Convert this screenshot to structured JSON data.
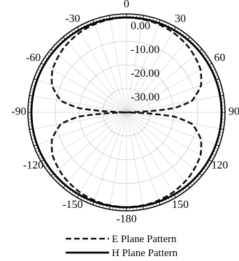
{
  "chart_data": {
    "type": "polar-line",
    "title": "",
    "angular_unit": "degrees",
    "angle_zero": "top",
    "angle_direction": "clockwise",
    "angle_tick_labels": [
      "0",
      "30",
      "60",
      "90",
      "120",
      "150",
      "-180",
      "-150",
      "-120",
      "-90",
      "-60",
      "-30"
    ],
    "radial_tick_labels": [
      "0.00",
      "-10.00",
      "-20.00",
      "-30.00"
    ],
    "radial_range_db": [
      -40,
      0
    ],
    "grid": true,
    "legend_placement": "bottom",
    "series": [
      {
        "name": "E Plane Pattern",
        "style": "dashed",
        "color": "#111111",
        "points": [
          {
            "angle": 0,
            "db": 0
          },
          {
            "angle": 15,
            "db": -0.3
          },
          {
            "angle": 30,
            "db": -1
          },
          {
            "angle": 45,
            "db": -2.2
          },
          {
            "angle": 60,
            "db": -4
          },
          {
            "angle": 70,
            "db": -6.6
          },
          {
            "angle": 80,
            "db": -12
          },
          {
            "angle": 85,
            "db": -20
          },
          {
            "angle": 89,
            "db": -40
          },
          {
            "angle": 91,
            "db": -40
          },
          {
            "angle": 95,
            "db": -20
          },
          {
            "angle": 100,
            "db": -12
          },
          {
            "angle": 110,
            "db": -6.6
          },
          {
            "angle": 120,
            "db": -4
          },
          {
            "angle": 135,
            "db": -2.2
          },
          {
            "angle": 150,
            "db": -1
          },
          {
            "angle": 165,
            "db": -0.3
          },
          {
            "angle": 180,
            "db": 0
          },
          {
            "angle": 195,
            "db": -0.3
          },
          {
            "angle": 210,
            "db": -1
          },
          {
            "angle": 225,
            "db": -2.2
          },
          {
            "angle": 240,
            "db": -4
          },
          {
            "angle": 250,
            "db": -6.6
          },
          {
            "angle": 260,
            "db": -12
          },
          {
            "angle": 265,
            "db": -20
          },
          {
            "angle": 269,
            "db": -40
          },
          {
            "angle": 271,
            "db": -40
          },
          {
            "angle": 275,
            "db": -20
          },
          {
            "angle": 280,
            "db": -12
          },
          {
            "angle": 290,
            "db": -6.6
          },
          {
            "angle": 300,
            "db": -4
          },
          {
            "angle": 315,
            "db": -2.2
          },
          {
            "angle": 330,
            "db": -1
          },
          {
            "angle": 345,
            "db": -0.3
          },
          {
            "angle": 360,
            "db": 0
          }
        ]
      },
      {
        "name": "H Plane Pattern",
        "style": "solid",
        "color": "#000000",
        "points": [
          {
            "angle": 0,
            "db": 0
          },
          {
            "angle": 30,
            "db": 0
          },
          {
            "angle": 60,
            "db": 0
          },
          {
            "angle": 90,
            "db": 0
          },
          {
            "angle": 120,
            "db": 0
          },
          {
            "angle": 150,
            "db": 0
          },
          {
            "angle": 180,
            "db": 0
          },
          {
            "angle": 210,
            "db": 0
          },
          {
            "angle": 240,
            "db": 0
          },
          {
            "angle": 270,
            "db": 0
          },
          {
            "angle": 300,
            "db": 0
          },
          {
            "angle": 330,
            "db": 0
          },
          {
            "angle": 360,
            "db": 0
          }
        ]
      }
    ]
  }
}
